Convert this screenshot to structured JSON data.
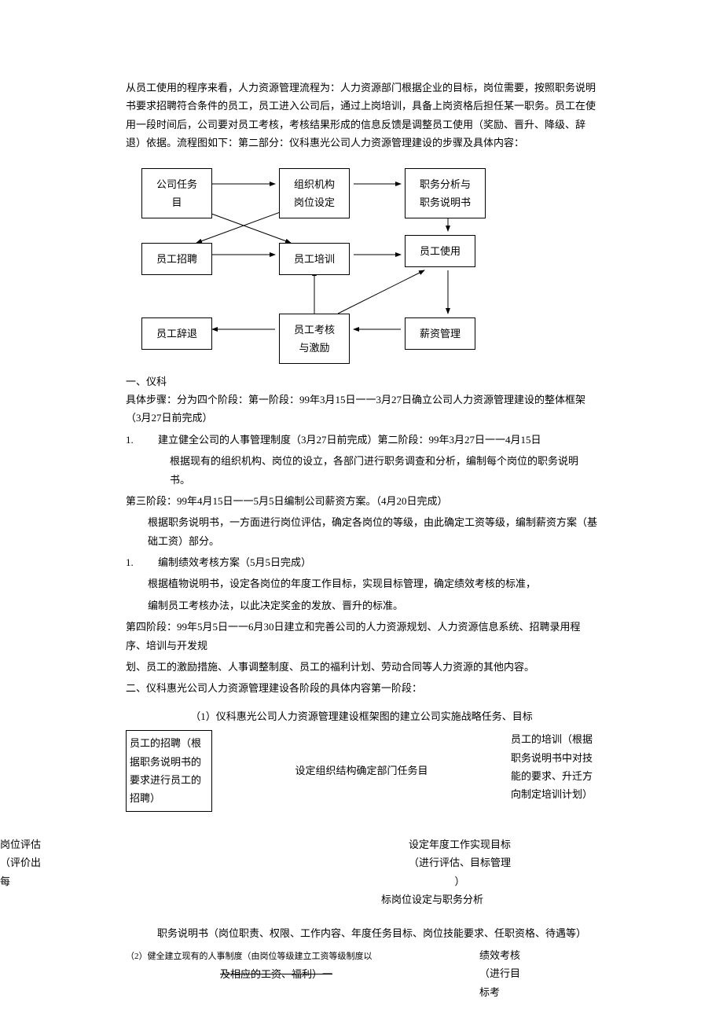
{
  "intro": {
    "p1": "从员工使用的程序来看，人力资源管理流程为：人力资源部门根据企业的目标，岗位需要，按照职务说明书要求招聘符合条件的员工，员工进入公司后，通过上岗培训，具备上岗资格后担任某一职务。员工在使用一段时间后，公司要对员工考核，考核结果形成的信息反馈是调整员工使用（奖励、晋升、降级、辞退）依据。流程图如下：第二部分：仪科惠光公司人力资源管理建设的步骤及具体内容："
  },
  "diagram": {
    "b1": "公司任务\n目",
    "b2": "组织机构\n岗位设定",
    "b3": "职务分析与\n职务说明书",
    "b4": "员工招聘",
    "b5": "员工培训",
    "b6": "员工使用",
    "b7": "员工辞退",
    "b8": "员工考核\n与激励",
    "b9": "薪资管理"
  },
  "sec1": {
    "label": "一、仪科",
    "p1": "具体步骤：分为四个阶段：第一阶段：99年3月15日一一3月27日确立公司人力资源管理建设的整体框架（3月27日前完成）",
    "li1_num": "1.",
    "li1": "建立健全公司的人事管理制度（3月27日前完成）第二阶段：99年3月27日一一4月15日",
    "li1_sub": "根据现有的组织机构、岗位的设立，各部门进行职务调查和分析，编制每个岗位的职务说明书。",
    "p2": "第三阶段：99年4月15日一一5月5日编制公司薪资方案。（4月20日完成）",
    "p2_sub": "根据职务说明书，一方面进行岗位评估，确定各岗位的等级，由此确定工资等级，编制薪资方案（基础工资）部分。",
    "li2_num": "1.",
    "li2": "编制绩效考核方案（5月5日完成）",
    "li2_sub1": "根据植物说明书，设定各岗位的年度工作目标，实现目标管理，确定绩效考核的标准，",
    "li2_sub2": "编制员工考核办法，以此决定奖金的发放、晋升的标准。",
    "p3": "第四阶段：99年5月5日一一6月30日建立和完善公司的人力资源规划、人力资源信息系统、招聘录用程序、培训与开发规",
    "p4": "划、员工的激励措施、人事调整制度、员工的福利计划、劳动合同等人力资源的其他内容。",
    "p5": "二、仪科惠光公司人力资源管理建设各阶段的具体内容第一阶段："
  },
  "sec2": {
    "title": "（1）仪科惠光公司人力资源管理建设框架图的建立公司实施战略任务、目标",
    "colL": "员工的招聘（根据职务说明书的要求进行员工的招聘）",
    "colM": "设定组织结构确定部门任务目",
    "colR": "员工的培训（根据职务说明书中对技能的要求、升迁方向制定培训计划）"
  },
  "sec3": {
    "left": "岗位评估（评价出每",
    "c1": "设定年度工作实现目标",
    "c2": "（进行评估、目标管理",
    "c3": "）",
    "c4": "标岗位设定与职务分析"
  },
  "footer": {
    "p1": "职务说明书（岗位职责、权限、工作内容、年度任务目标、岗位技能要求、任职资格、待遇等）",
    "small": "（2）健全建立现有的人事制度（由岗位等级建立工资等级制度以",
    "struck": "及相应的工资、福利）一",
    "right": "绩效考核（进行目标考"
  }
}
